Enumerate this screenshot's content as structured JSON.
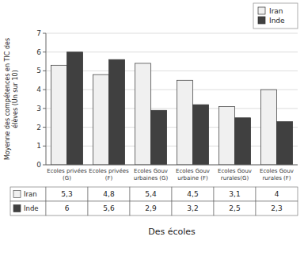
{
  "chart_data": {
    "type": "bar",
    "categories": [
      "Ecoles privées\n(G)",
      "Ecoles privées\n(F)",
      "Ecoles Gouv\nurbaines (G)",
      "Ecoles Gouv\nurbaine (F)",
      "Ecoles Gouv\nrurales(G)",
      "Ecoles Gouv\nrurales (F)"
    ],
    "series": [
      {
        "name": "Iran",
        "color": "#f0f0f0",
        "values": [
          5.3,
          4.8,
          5.4,
          4.5,
          3.1,
          4.0
        ],
        "value_labels": [
          "5,3",
          "4,8",
          "5,4",
          "4,5",
          "3,1",
          "4"
        ]
      },
      {
        "name": "Inde",
        "color": "#404040",
        "values": [
          6.0,
          5.6,
          2.9,
          3.2,
          2.5,
          2.3
        ],
        "value_labels": [
          "6",
          "5,6",
          "2,9",
          "3,2",
          "2,5",
          "2,3"
        ]
      }
    ],
    "ylabel": "Moyenne des compétences en TIC des\nélèves (Un sur 10)",
    "xlabel": "Des écoles",
    "ylim": [
      0,
      7
    ],
    "yticks": [
      0,
      1,
      2,
      3,
      4,
      5,
      6,
      7
    ],
    "grid": true,
    "legend": "upper right"
  }
}
